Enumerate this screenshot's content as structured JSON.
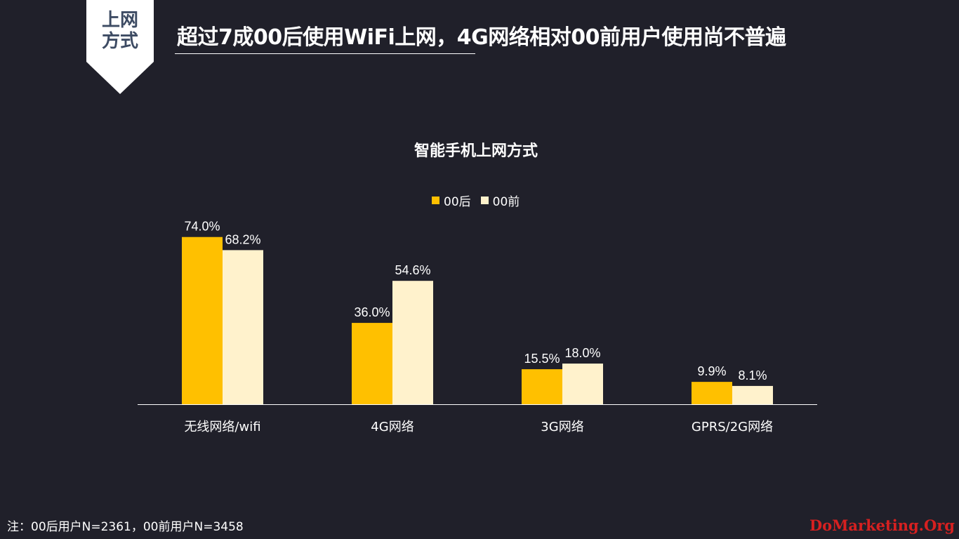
{
  "badge": {
    "line1": "上网",
    "line2": "方式"
  },
  "headline": "超过7成00后使用WiFi上网，4G网络相对00前用户使用尚不普遍",
  "note": "注：00后用户N=2361，00前用户N=3458",
  "watermark": "DoMarketing.Org",
  "colors": {
    "background": "#20202a",
    "series_after00": "#ffc000",
    "series_before00": "#fff2cc",
    "badge": "#ffffff"
  },
  "chart_data": {
    "type": "bar",
    "title": "智能手机上网方式",
    "categories": [
      "无线网络/wifi",
      "4G网络",
      "3G网络",
      "GPRS/2G网络"
    ],
    "series": [
      {
        "name": "00后",
        "values": [
          74.0,
          36.0,
          15.5,
          9.9
        ],
        "labels": [
          "74.0%",
          "36.0%",
          "15.5%",
          "9.9%"
        ],
        "color": "#ffc000"
      },
      {
        "name": "00前",
        "values": [
          68.2,
          54.6,
          18.0,
          8.1
        ],
        "labels": [
          "68.2%",
          "54.6%",
          "18.0%",
          "8.1%"
        ],
        "color": "#fff2cc"
      }
    ],
    "ylim": [
      0,
      100
    ],
    "legend": "top",
    "grid": false
  }
}
